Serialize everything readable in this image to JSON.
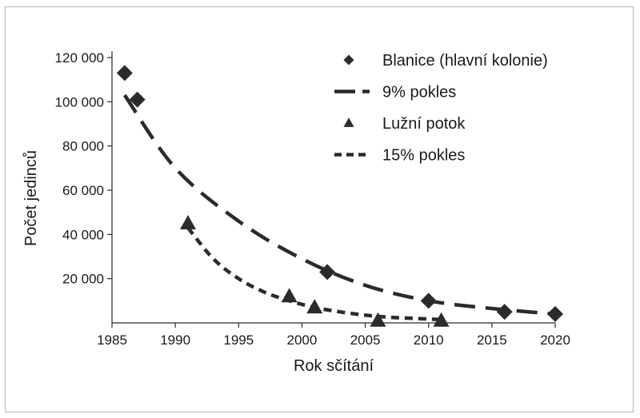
{
  "chart_data": {
    "type": "scatter",
    "xlabel": "Rok sčítání",
    "ylabel": "Počet jedinců",
    "xlim": [
      1985,
      2020
    ],
    "ylim": [
      0,
      120000
    ],
    "x_ticks": [
      1985,
      1990,
      1995,
      2000,
      2005,
      2010,
      2015,
      2020
    ],
    "y_ticks": [
      20000,
      40000,
      60000,
      80000,
      100000,
      120000
    ],
    "x_tick_labels": [
      "1985",
      "1990",
      "1995",
      "2000",
      "2005",
      "2010",
      "2015",
      "2020"
    ],
    "y_tick_labels": [
      "20 000",
      "40 000",
      "60 000",
      "80 000",
      "100 000",
      "120 000"
    ],
    "grid": false,
    "legend_position": "top-right",
    "series": [
      {
        "name": "Blanice (hlavní kolonie)",
        "kind": "points",
        "marker": "diamond",
        "x": [
          1986,
          1987,
          2002,
          2010,
          2016,
          2020
        ],
        "y": [
          113000,
          101000,
          23000,
          10000,
          5000,
          4000
        ]
      },
      {
        "name": "9% pokles",
        "kind": "line",
        "dash": "long",
        "x": [
          1986,
          1990,
          1995,
          2000,
          2005,
          2010,
          2015,
          2020
        ],
        "y": [
          103000,
          70000,
          46000,
          29000,
          17000,
          10000,
          6500,
          4000
        ]
      },
      {
        "name": "Lužní potok",
        "kind": "points",
        "marker": "triangle",
        "x": [
          1991,
          1999,
          2001,
          2006,
          2011
        ],
        "y": [
          45000,
          12000,
          7000,
          1000,
          1000
        ]
      },
      {
        "name": "15% pokles",
        "kind": "line",
        "dash": "short",
        "x": [
          1991,
          1993,
          1995,
          1997,
          1999,
          2001,
          2003,
          2005,
          2007,
          2009,
          2011
        ],
        "y": [
          43000,
          29000,
          20000,
          14000,
          10000,
          7000,
          5000,
          3500,
          2500,
          2000,
          1500
        ]
      }
    ]
  },
  "colors": {
    "ink": "#2b2b2b",
    "frame": "#b5b5b5"
  }
}
